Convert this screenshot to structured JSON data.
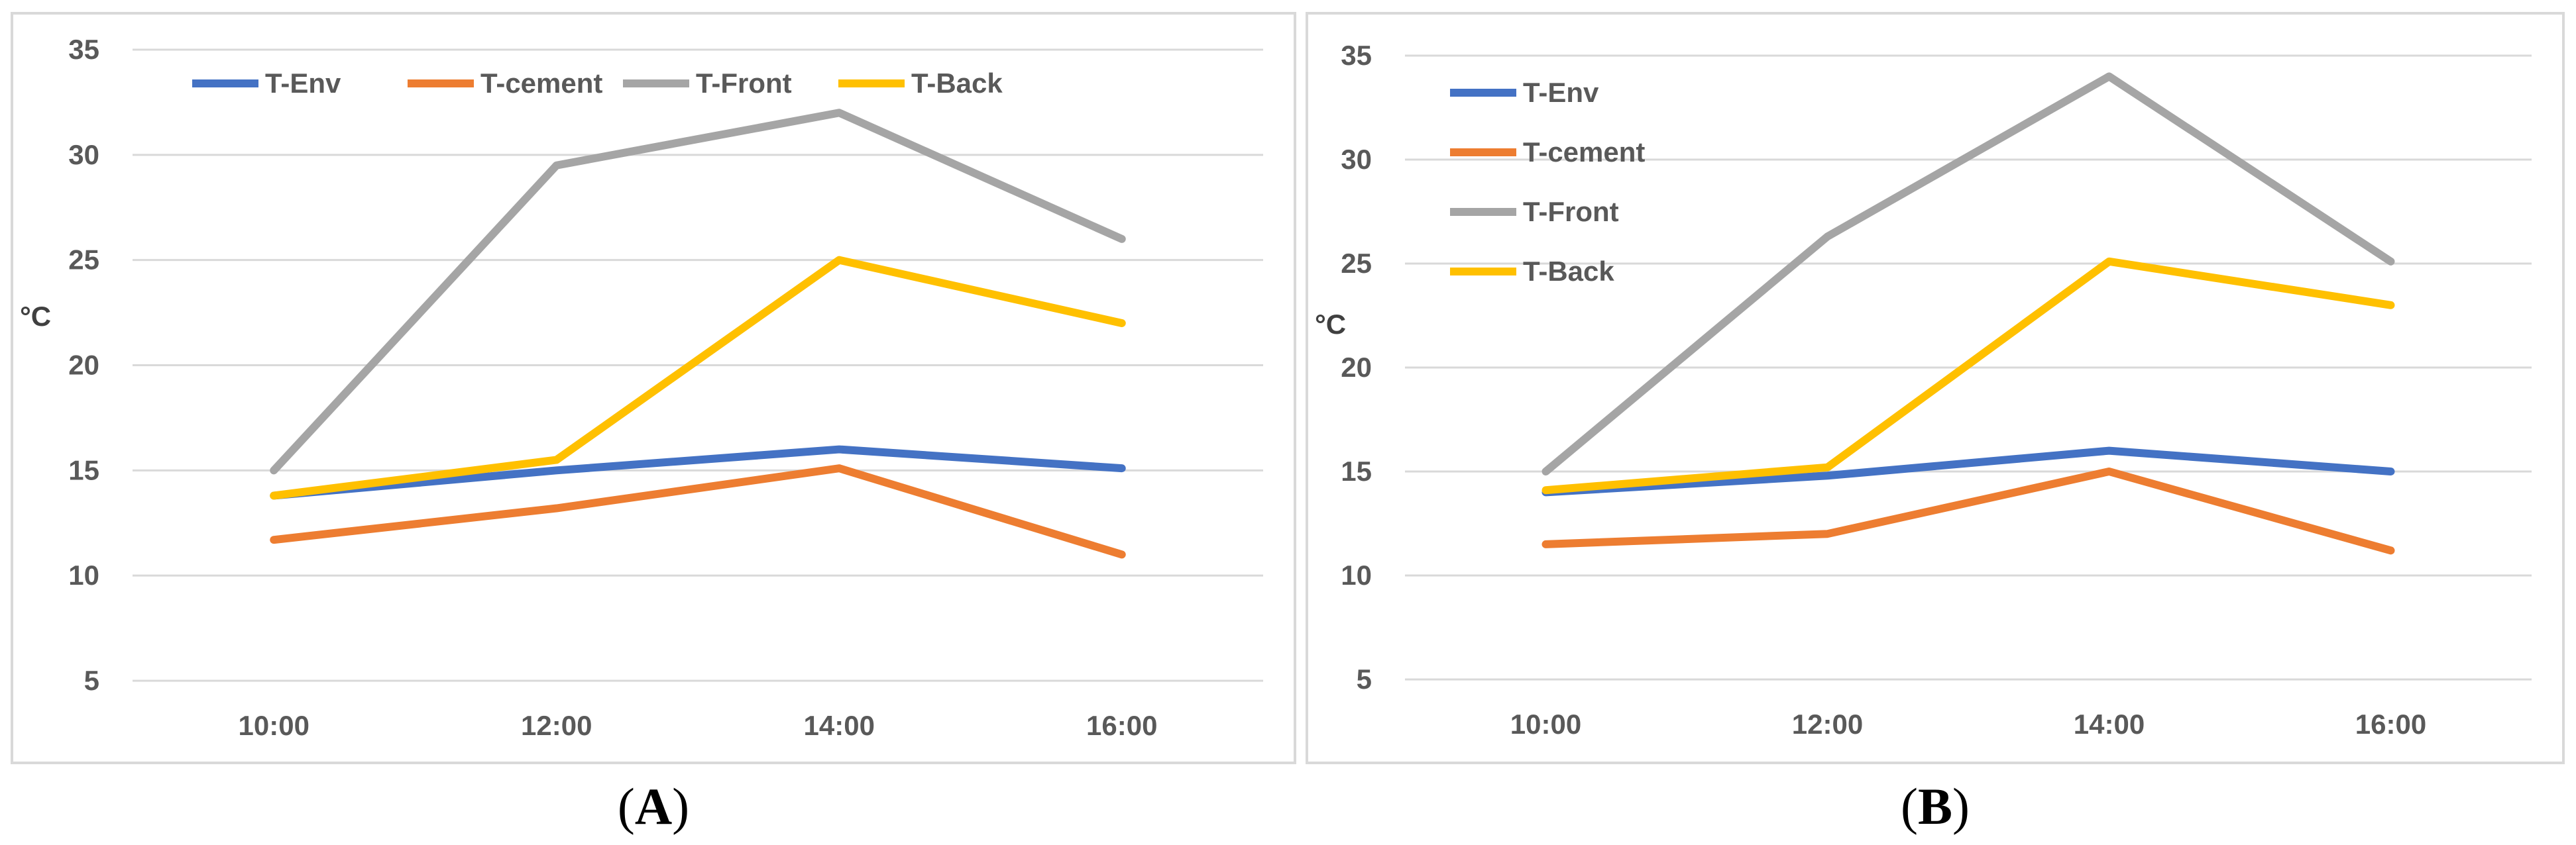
{
  "chart_data": [
    {
      "type": "line",
      "panel_label": "A",
      "categories": [
        "10:00",
        "12:00",
        "14:00",
        "16:00"
      ],
      "ylabel": "°C",
      "ylim": [
        5,
        35
      ],
      "yticks": [
        5,
        10,
        15,
        20,
        25,
        30,
        35
      ],
      "grid": true,
      "legend_placement": "top-horizontal",
      "series": [
        {
          "name": "T-Env",
          "color": "#4472C4",
          "values": [
            13.8,
            15.0,
            16.0,
            15.1
          ]
        },
        {
          "name": "T-cement",
          "color": "#ED7D31",
          "values": [
            11.7,
            13.2,
            15.1,
            11.0
          ]
        },
        {
          "name": "T-Front",
          "color": "#A5A5A5",
          "values": [
            15.0,
            29.5,
            32.0,
            26.0
          ]
        },
        {
          "name": "T-Back",
          "color": "#FFC000",
          "values": [
            13.8,
            15.5,
            25.0,
            22.0
          ]
        }
      ]
    },
    {
      "type": "line",
      "panel_label": "B",
      "categories": [
        "10:00",
        "12:00",
        "14:00",
        "16:00"
      ],
      "ylabel": "°C",
      "ylim": [
        5,
        35
      ],
      "yticks": [
        5,
        10,
        15,
        20,
        25,
        30,
        35
      ],
      "grid": true,
      "legend_placement": "top-left-vertical",
      "series": [
        {
          "name": "T-Env",
          "color": "#4472C4",
          "values": [
            14.0,
            14.8,
            16.0,
            15.0
          ]
        },
        {
          "name": "T-cement",
          "color": "#ED7D31",
          "values": [
            11.5,
            12.0,
            15.0,
            11.2
          ]
        },
        {
          "name": "T-Front",
          "color": "#A5A5A5",
          "values": [
            15.0,
            26.3,
            34.0,
            25.1
          ]
        },
        {
          "name": "T-Back",
          "color": "#FFC000",
          "values": [
            14.1,
            15.2,
            25.1,
            23.0
          ]
        }
      ]
    }
  ],
  "captions": [
    {
      "open": "(",
      "label": "A",
      "close": ")"
    },
    {
      "open": "(",
      "label": "B",
      "close": ")"
    }
  ]
}
